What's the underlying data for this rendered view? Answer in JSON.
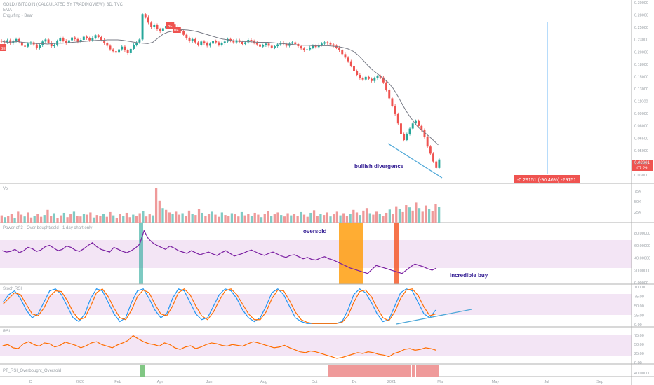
{
  "header": {
    "title": "GOLD / BITCOIN (CALCULATED BY TRADINGVIEW), 3D, TVC",
    "line2": "EMA",
    "line3": "Engulfing - Bear"
  },
  "panes": {
    "volume_label": "Vol",
    "power_label": "Power of 3 - Over bought/sold - 1 day chart only",
    "stoch_label": "Stoch RSI",
    "rsi_label": "RSI",
    "ob_label": "PT_RSI_Overbought_Oversold"
  },
  "annotations": {
    "bullish": "bullish divergence",
    "oversold": "oversold",
    "incredible": "incredible buy",
    "measure": "-0.29151 (-90.46%) -29151",
    "last_price": "0.03661",
    "countdown": "07:29"
  },
  "markers": {
    "bf": "BF",
    "be": "BE"
  },
  "price_axis": [
    "0.30000",
    "0.28000",
    "0.25000",
    "0.23000",
    "0.20000",
    "0.18000",
    "0.15000",
    "0.13000",
    "0.11000",
    "0.09000",
    "0.08000",
    "0.06500",
    "0.05000",
    "0.04000",
    "0.03000"
  ],
  "vol_axis": [
    "75K",
    "50K",
    "25K"
  ],
  "power_axis": [
    "80.00000",
    "60.00000",
    "40.00000",
    "20.00000",
    "0.00000"
  ],
  "stoch_axis": [
    "100.00",
    "75.00",
    "50.00",
    "25.00",
    "0.00"
  ],
  "rsi_axis": [
    "75.00",
    "50.00",
    "25.00",
    "0.00"
  ],
  "ob_axis": [
    "40.00000"
  ],
  "time_axis": [
    "D",
    "2020",
    "Feb",
    "Apr",
    "Jun",
    "Aug",
    "Oct",
    "Dc",
    "2021",
    "Mar",
    "May",
    "Jul",
    "Sep"
  ],
  "colors": {
    "up": "#26a69a",
    "down": "#ef5350",
    "ema": "#787b86",
    "power": "#7b1fa2",
    "stochK": "#2196f3",
    "stochD": "#ff6d00",
    "rsi": "#ff6d00",
    "band": "#f3e5f5",
    "trend": "#4fa8d8",
    "highlight": "#ff9800",
    "teal": "#26a69a"
  },
  "chart_data": {
    "type": "candlestick",
    "title": "GOLD / BITCOIN (CALCULATED BY TRADINGVIEW), 3D, TVC",
    "x_ticks": [
      "D",
      "2020",
      "Feb",
      "Apr",
      "Jun",
      "Aug",
      "Oct",
      "Dc",
      "2021",
      "Mar",
      "May",
      "Jul",
      "Sep"
    ],
    "close": [
      0.18,
      0.178,
      0.183,
      0.176,
      0.181,
      0.186,
      0.179,
      0.17,
      0.168,
      0.175,
      0.178,
      0.173,
      0.165,
      0.171,
      0.18,
      0.185,
      0.177,
      0.169,
      0.172,
      0.181,
      0.188,
      0.182,
      0.176,
      0.183,
      0.19,
      0.186,
      0.179,
      0.184,
      0.192,
      0.188,
      0.183,
      0.189,
      0.196,
      0.191,
      0.184,
      0.176,
      0.17,
      0.162,
      0.158,
      0.155,
      0.162,
      0.168,
      0.16,
      0.154,
      0.163,
      0.172,
      0.178,
      0.185,
      0.26,
      0.25,
      0.232,
      0.218,
      0.225,
      0.212,
      0.206,
      0.215,
      0.222,
      0.218,
      0.228,
      0.22,
      0.214,
      0.206,
      0.197,
      0.188,
      0.181,
      0.186,
      0.178,
      0.172,
      0.18,
      0.176,
      0.17,
      0.175,
      0.181,
      0.178,
      0.172,
      0.176,
      0.18,
      0.186,
      0.182,
      0.178,
      0.183,
      0.179,
      0.174,
      0.178,
      0.184,
      0.181,
      0.177,
      0.173,
      0.168,
      0.171,
      0.175,
      0.17,
      0.166,
      0.169,
      0.173,
      0.177,
      0.174,
      0.17,
      0.175,
      0.178,
      0.174,
      0.169,
      0.164,
      0.16,
      0.162,
      0.166,
      0.17,
      0.167,
      0.172,
      0.175,
      0.178,
      0.176,
      0.173,
      0.17,
      0.166,
      0.16,
      0.152,
      0.145,
      0.138,
      0.13,
      0.121,
      0.115,
      0.11,
      0.108,
      0.112,
      0.109,
      0.106,
      0.11,
      0.113,
      0.111,
      0.104,
      0.094,
      0.084,
      0.076,
      0.068,
      0.06,
      0.052,
      0.048,
      0.052,
      0.056,
      0.06,
      0.062,
      0.058,
      0.055,
      0.05,
      0.044,
      0.04,
      0.036,
      0.033,
      0.037
    ],
    "ema": [
      0.18,
      0.178,
      0.179,
      0.18,
      0.178,
      0.177,
      0.176,
      0.175,
      0.175,
      0.174,
      0.175,
      0.176,
      0.176,
      0.177,
      0.178,
      0.179,
      0.18,
      0.181,
      0.182,
      0.183,
      0.183,
      0.184,
      0.184,
      0.184,
      0.183,
      0.181,
      0.179,
      0.177,
      0.176,
      0.175,
      0.178,
      0.188,
      0.198,
      0.204,
      0.207,
      0.209,
      0.211,
      0.21,
      0.208,
      0.205,
      0.201,
      0.197,
      0.193,
      0.189,
      0.186,
      0.184,
      0.182,
      0.181,
      0.18,
      0.18,
      0.179,
      0.178,
      0.178,
      0.178,
      0.177,
      0.176,
      0.175,
      0.174,
      0.173,
      0.172,
      0.171,
      0.171,
      0.17,
      0.17,
      0.17,
      0.17,
      0.169,
      0.168,
      0.166,
      0.163,
      0.158,
      0.15,
      0.14,
      0.13,
      0.122,
      0.116,
      0.11,
      0.104,
      0.096,
      0.086,
      0.076,
      0.068,
      0.062,
      0.057,
      0.054,
      0.051,
      0.048,
      0.045
    ],
    "volume_k": [
      20,
      15,
      18,
      25,
      12,
      30,
      22,
      17,
      28,
      14,
      19,
      24,
      16,
      21,
      35,
      18,
      26,
      13,
      20,
      27,
      15,
      23,
      30,
      19,
      17,
      24,
      22,
      28,
      14,
      21,
      18,
      25,
      16,
      29,
      20,
      13,
      24,
      19,
      27,
      15,
      22,
      18,
      26,
      31,
      17,
      23,
      20,
      95,
      60,
      40,
      35,
      28,
      24,
      30,
      22,
      26,
      19,
      33,
      25,
      21,
      38,
      27,
      18,
      24,
      30,
      22,
      16,
      28,
      21,
      19,
      26,
      23,
      17,
      29,
      20,
      24,
      18,
      27,
      22,
      15,
      25,
      31,
      19,
      23,
      28,
      21,
      17,
      26,
      20,
      24,
      18,
      29,
      22,
      16,
      27,
      34,
      19,
      25,
      21,
      28,
      17,
      23,
      30,
      20,
      26,
      18,
      24,
      35,
      28,
      21,
      33,
      40,
      26,
      22,
      30,
      25,
      18,
      27,
      36,
      24,
      45,
      38,
      29,
      48,
      42,
      33,
      55,
      40,
      30,
      47,
      38,
      32,
      50,
      44
    ],
    "power_of_3": [
      50,
      48,
      49,
      52,
      47,
      50,
      55,
      53,
      49,
      51,
      56,
      58,
      54,
      50,
      52,
      57,
      55,
      51,
      49,
      53,
      58,
      62,
      56,
      52,
      50,
      48,
      55,
      52,
      49,
      47,
      50,
      54,
      60,
      80,
      68,
      62,
      58,
      55,
      52,
      57,
      54,
      50,
      48,
      46,
      50,
      47,
      44,
      46,
      48,
      45,
      43,
      47,
      50,
      46,
      42,
      44,
      46,
      49,
      51,
      48,
      45,
      43,
      46,
      48,
      45,
      42,
      40,
      43,
      44,
      41,
      38,
      40,
      37,
      36,
      39,
      41,
      38,
      36,
      33,
      30,
      27,
      24,
      22,
      20,
      18,
      16,
      22,
      28,
      26,
      24,
      22,
      20,
      18,
      16,
      21,
      26,
      30,
      28,
      26,
      23,
      21,
      24
    ],
    "stoch_k": [
      60,
      80,
      90,
      70,
      40,
      20,
      30,
      60,
      90,
      95,
      80,
      50,
      20,
      10,
      30,
      70,
      95,
      90,
      60,
      30,
      10,
      20,
      60,
      90,
      95,
      70,
      40,
      20,
      30,
      70,
      95,
      90,
      60,
      30,
      15,
      20,
      50,
      80,
      95,
      90,
      70,
      40,
      20,
      10,
      20,
      50,
      85,
      95,
      80,
      50,
      20,
      10,
      5,
      5,
      5,
      5,
      5,
      5,
      10,
      40,
      80,
      95,
      85,
      60,
      30,
      10,
      15,
      50,
      85,
      95,
      90,
      60,
      30,
      20,
      40
    ],
    "stoch_d": [
      55,
      70,
      85,
      80,
      55,
      30,
      25,
      45,
      75,
      90,
      88,
      65,
      35,
      15,
      20,
      50,
      85,
      95,
      75,
      45,
      20,
      15,
      40,
      75,
      92,
      85,
      55,
      30,
      25,
      50,
      85,
      95,
      80,
      50,
      25,
      15,
      35,
      65,
      90,
      95,
      80,
      55,
      30,
      15,
      15,
      35,
      70,
      92,
      90,
      65,
      35,
      15,
      8,
      5,
      5,
      5,
      5,
      5,
      8,
      25,
      60,
      88,
      92,
      75,
      45,
      20,
      12,
      35,
      70,
      92,
      95,
      78,
      48,
      25,
      30
    ],
    "rsi": [
      45,
      48,
      40,
      38,
      50,
      55,
      48,
      44,
      52,
      50,
      42,
      46,
      54,
      50,
      46,
      40,
      45,
      52,
      55,
      48,
      44,
      40,
      47,
      52,
      58,
      70,
      62,
      55,
      50,
      48,
      44,
      52,
      48,
      40,
      36,
      42,
      45,
      38,
      42,
      48,
      52,
      50,
      46,
      44,
      48,
      46,
      44,
      50,
      55,
      52,
      48,
      44,
      40,
      42,
      46,
      40,
      35,
      30,
      28,
      32,
      30,
      26,
      22,
      18,
      14,
      16,
      20,
      24,
      28,
      26,
      30,
      28,
      24,
      22,
      18,
      26,
      30,
      36,
      38,
      34,
      36,
      40,
      38,
      34
    ],
    "divergence_price": [
      {
        "x": "2021-01",
        "y": 0.06
      },
      {
        "x": "2021-03",
        "y": 0.03
      }
    ],
    "oversold_zones": [
      [
        0.0,
        1.0
      ]
    ],
    "price_range": [
      0.03,
      0.3
    ]
  }
}
